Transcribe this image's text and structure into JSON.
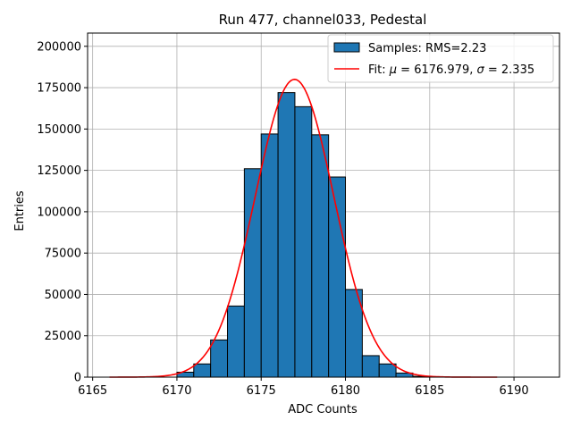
{
  "chart_data": {
    "type": "bar",
    "title": "Run 477, channel033, Pedestal",
    "xlabel": "ADC Counts",
    "ylabel": "Entries",
    "xlim": [
      6164.7,
      6192.7
    ],
    "ylim": [
      0,
      208000
    ],
    "xticks": [
      6165,
      6170,
      6175,
      6180,
      6185,
      6190
    ],
    "xtick_labels": [
      "6165",
      "6170",
      "6175",
      "6180",
      "6185",
      "6190"
    ],
    "yticks": [
      0,
      25000,
      50000,
      75000,
      100000,
      125000,
      150000,
      175000,
      200000
    ],
    "ytick_labels": [
      "0",
      "25000",
      "50000",
      "75000",
      "100000",
      "125000",
      "150000",
      "175000",
      "200000"
    ],
    "grid": true,
    "legend_position": "top-right",
    "histogram": {
      "name": "Samples: RMS=2.23",
      "color": "#1f77b4",
      "bins": [
        {
          "x0": 6170,
          "x1": 6171,
          "value": 3000
        },
        {
          "x0": 6171,
          "x1": 6172,
          "value": 8000
        },
        {
          "x0": 6172,
          "x1": 6173,
          "value": 22500
        },
        {
          "x0": 6173,
          "x1": 6174,
          "value": 43000
        },
        {
          "x0": 6174,
          "x1": 6175,
          "value": 126000
        },
        {
          "x0": 6175,
          "x1": 6176,
          "value": 147000
        },
        {
          "x0": 6176,
          "x1": 6177,
          "value": 172000
        },
        {
          "x0": 6177,
          "x1": 6178,
          "value": 163500
        },
        {
          "x0": 6178,
          "x1": 6179,
          "value": 146500
        },
        {
          "x0": 6179,
          "x1": 6180,
          "value": 121000
        },
        {
          "x0": 6180,
          "x1": 6181,
          "value": 53000
        },
        {
          "x0": 6181,
          "x1": 6182,
          "value": 13000
        },
        {
          "x0": 6182,
          "x1": 6183,
          "value": 8000
        },
        {
          "x0": 6183,
          "x1": 6184,
          "value": 2500
        },
        {
          "x0": 6184,
          "x1": 6185,
          "value": 500
        }
      ]
    },
    "fit": {
      "name": "Fit: μ = 6176.979, σ = 2.335",
      "label_prefix": "Fit: ",
      "mu_symbol": "μ",
      "mu_text": " = 6176.979, ",
      "sigma_symbol": "σ",
      "sigma_text": " = 2.335",
      "color": "#ff0000",
      "mu": 6176.979,
      "sigma": 2.335,
      "amplitude": 180000,
      "x_range": [
        6166,
        6189
      ]
    }
  }
}
